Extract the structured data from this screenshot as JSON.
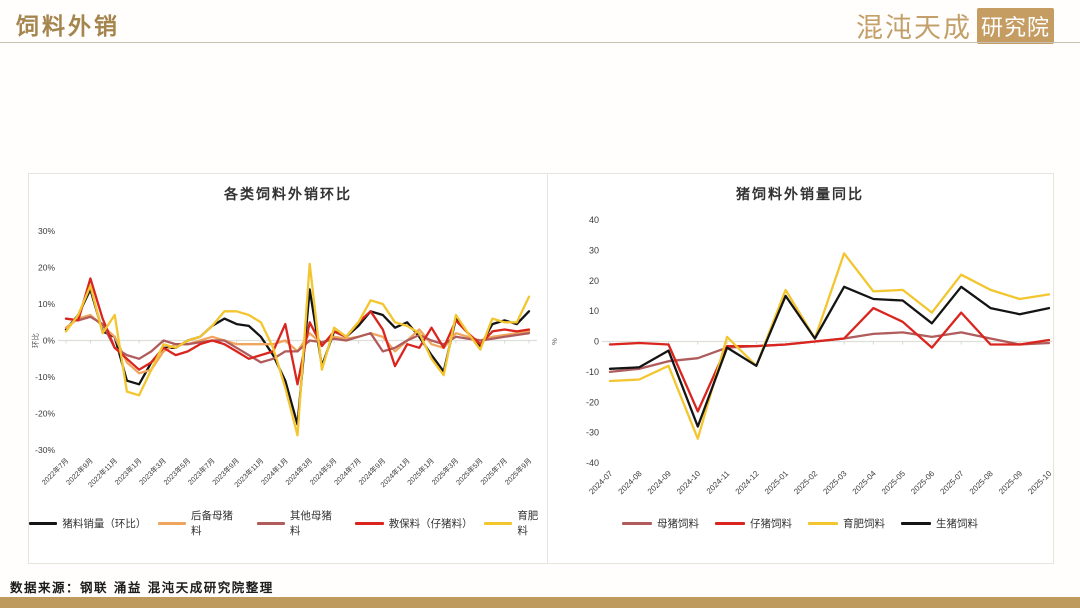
{
  "page": {
    "title": "饲料外销",
    "logo": {
      "brand": "混沌天成",
      "badge": "研究院"
    },
    "source_note": "数据来源：钢联 涌益 混沌天成研究院整理"
  },
  "colors": {
    "accent_gold": "#a5854e",
    "logo_gold": "#c59d63",
    "bottom_bar": "#bf9a5e",
    "panel_border": "#e7e4de",
    "zero_line": "#dededa",
    "black_line": "#141414",
    "orange_line": "#f0a55e",
    "maroon_line": "#b05c5c",
    "red_line": "#d9251d",
    "yellow_line": "#f3c52f"
  },
  "chart_data": [
    {
      "type": "line",
      "title": "各类饲料外销环比",
      "ylabel": "环比",
      "ylim": [
        -30,
        30
      ],
      "ytick_step": 10,
      "ytick_suffix": "%",
      "x_label_every": 2,
      "legend_position": "bottom",
      "grid": false,
      "categories": [
        "2022年7月",
        "2022年8月",
        "2022年9月",
        "2022年10月",
        "2022年11月",
        "2022年12月",
        "2023年1月",
        "2023年2月",
        "2023年3月",
        "2023年4月",
        "2023年5月",
        "2023年6月",
        "2023年7月",
        "2023年8月",
        "2023年9月",
        "2023年10月",
        "2023年11月",
        "2023年12月",
        "2024年1月",
        "2024年2月",
        "2024年3月",
        "2024年4月",
        "2024年5月",
        "2024年6月",
        "2024年7月",
        "2024年8月",
        "2024年9月",
        "2024年10月",
        "2024年11月",
        "2024年12月",
        "2025年1月",
        "2025年2月",
        "2025年3月",
        "2025年4月",
        "2025年5月",
        "2025年6月",
        "2025年7月",
        "2025年8月",
        "2025年9月"
      ],
      "series": [
        {
          "name": "猪料销量（环比）",
          "color": "#141414",
          "values": [
            3,
            7,
            14,
            2.5,
            1,
            -11,
            -12,
            -6,
            -2,
            -2,
            0,
            1,
            4,
            6,
            4.5,
            4,
            1,
            -4,
            -11,
            -23,
            14,
            -7,
            2.5,
            1,
            4,
            8,
            7,
            3.5,
            5,
            1,
            -4,
            -8.5,
            6,
            2,
            -1.5,
            4.5,
            5.5,
            4.5,
            8
          ]
        },
        {
          "name": "后备母猪料",
          "color": "#f0a55e",
          "values": [
            3.5,
            6,
            7,
            4,
            1,
            -6,
            -9,
            -8,
            -3,
            -1,
            -1,
            0,
            1,
            0,
            -1,
            -1,
            -1,
            -1,
            0,
            -3,
            2,
            -1,
            1,
            0.5,
            1,
            2,
            1,
            -3,
            0,
            3,
            -1,
            -2,
            2,
            1,
            0,
            1,
            1.5,
            2,
            2.5
          ]
        },
        {
          "name": "其他母猪料",
          "color": "#b05c5c",
          "values": [
            6,
            5.5,
            6.5,
            4.5,
            -2,
            -4,
            -5,
            -3,
            0,
            -1,
            -1,
            -0.5,
            0,
            0,
            -2,
            -4,
            -6,
            -5,
            -3,
            -3,
            0,
            -0.5,
            0.5,
            0,
            1,
            2,
            -3,
            -2,
            0,
            1.5,
            0,
            -1,
            1,
            0.5,
            0,
            0.5,
            1,
            1.5,
            2
          ]
        },
        {
          "name": "教保料（仔猪料）",
          "color": "#d9251d",
          "values": [
            6,
            5.5,
            17,
            6,
            -2,
            -5,
            -8,
            -6,
            -2,
            -4,
            -3,
            -1,
            0,
            -1,
            -3,
            -5,
            -4,
            -3,
            4.5,
            -12,
            5,
            -1.5,
            2.5,
            1,
            5,
            8,
            3,
            -7,
            -1,
            -2,
            3.5,
            -2,
            5.5,
            2,
            -1,
            2.5,
            3,
            2.5,
            3
          ]
        },
        {
          "name": "育肥料",
          "color": "#f3c52f",
          "values": [
            2.5,
            7,
            15,
            2,
            7,
            -14,
            -15,
            -8,
            -1,
            -2,
            0,
            1,
            4,
            8,
            8,
            7,
            5,
            -2,
            -13,
            -26,
            21,
            -8,
            3.5,
            1,
            5,
            11,
            10,
            5,
            4,
            2,
            -5,
            -9.5,
            7,
            2,
            -2.5,
            6,
            5,
            5,
            12
          ]
        }
      ]
    },
    {
      "type": "line",
      "title": "猪饲料外销量同比",
      "ylabel": "%",
      "ylim": [
        -40,
        40
      ],
      "ytick_step": 10,
      "ytick_suffix": "",
      "x_label_every": 1,
      "legend_position": "bottom",
      "grid": false,
      "categories": [
        "2024-07",
        "2024-08",
        "2024-09",
        "2024-10",
        "2024-11",
        "2024-12",
        "2025-01",
        "2025-02",
        "2025-03",
        "2025-04",
        "2025-05",
        "2025-06",
        "2025-07",
        "2025-08",
        "2025-09",
        "2025-10"
      ],
      "series": [
        {
          "name": "母猪饲料",
          "color": "#b05c5c",
          "values": [
            -10,
            -9,
            -6.5,
            -5.5,
            -2,
            -1.5,
            -1,
            0,
            1,
            2.5,
            3,
            1.5,
            3,
            1,
            -1,
            -0.5
          ]
        },
        {
          "name": "仔猪饲料",
          "color": "#d9251d",
          "values": [
            -1,
            -0.5,
            -1,
            -23,
            -1.5,
            -1.5,
            -1,
            0,
            1,
            11,
            6.5,
            -2,
            9.5,
            -1,
            -1,
            0.5
          ]
        },
        {
          "name": "育肥饲料",
          "color": "#f3c52f",
          "values": [
            -13,
            -12.5,
            -8,
            -32,
            1.5,
            -8,
            17,
            1,
            29,
            16.5,
            17,
            9.5,
            22,
            17,
            14,
            15.5
          ]
        },
        {
          "name": "生猪饲料",
          "color": "#141414",
          "values": [
            -9,
            -8.5,
            -3,
            -28,
            -2,
            -8,
            15,
            1,
            18,
            14,
            13.5,
            6,
            18,
            11,
            9,
            11
          ]
        }
      ]
    }
  ]
}
